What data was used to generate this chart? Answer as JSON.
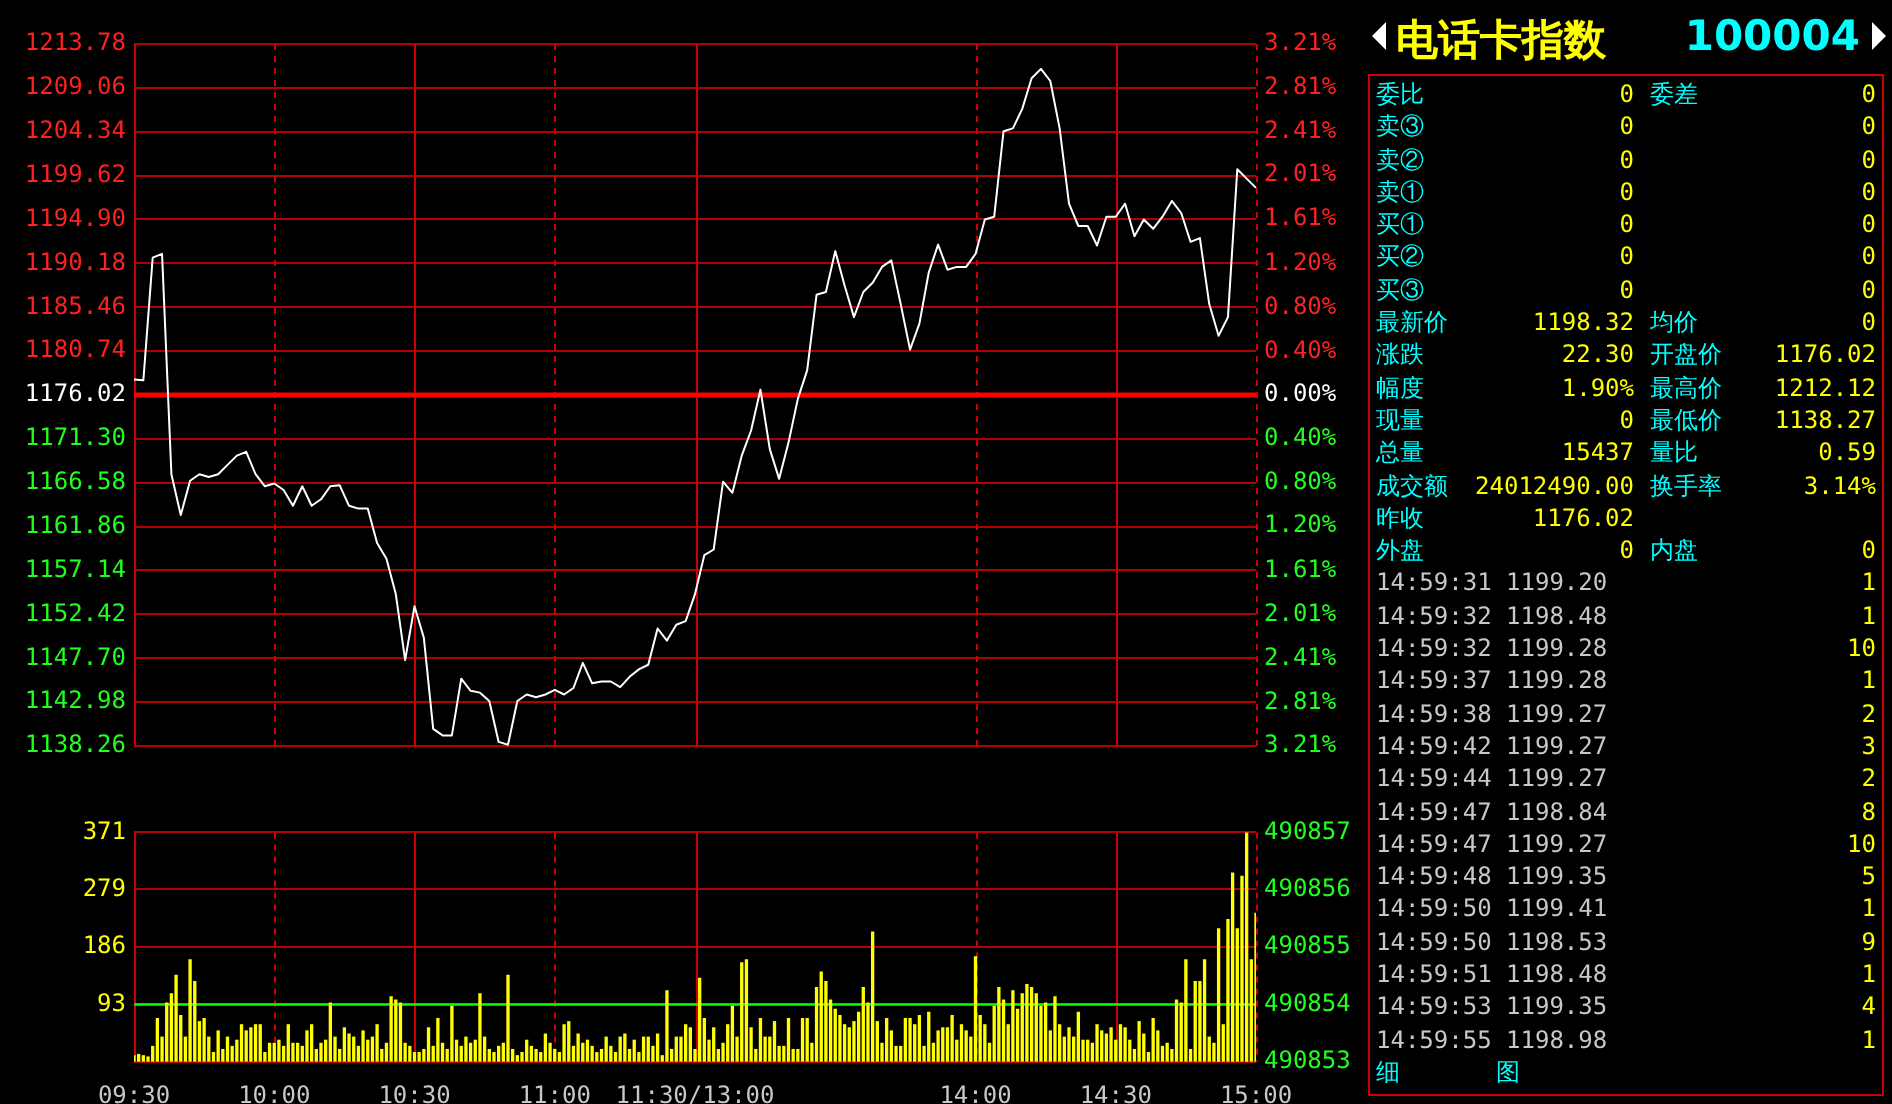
{
  "chart_data": [
    {
      "type": "line",
      "color": "#ffffff",
      "marker": "none",
      "grid": true,
      "tick_labels": "y",
      "categories": [
        null,
        null,
        null,
        null,
        null,
        null,
        null,
        null,
        null,
        null,
        null,
        null,
        null,
        null,
        null,
        null,
        null,
        null,
        null,
        null,
        null,
        null,
        null,
        null,
        null,
        null,
        null,
        null,
        null,
        null,
        null,
        null,
        null,
        null,
        null,
        null,
        null,
        null,
        null,
        null,
        null,
        null,
        null,
        null,
        null,
        null,
        null,
        null,
        null,
        null,
        null,
        null,
        null,
        null,
        null,
        null,
        null,
        null,
        null,
        null,
        null,
        null,
        null,
        null,
        null,
        null,
        null,
        null,
        null,
        null,
        null,
        null,
        null,
        null,
        null,
        null,
        null,
        null,
        null,
        null,
        null,
        null,
        null,
        null,
        null,
        null,
        null,
        null,
        null,
        null,
        null,
        null,
        null,
        null,
        null,
        null,
        null,
        null,
        null,
        null,
        null,
        null,
        null,
        null,
        null,
        null,
        null,
        null,
        null,
        null,
        null,
        null,
        null,
        null,
        null,
        null,
        null,
        null,
        null,
        null,
        null
      ],
      "values": [
        1177.7,
        1177.6,
        1190.8,
        1191.2,
        1167.5,
        1163.1,
        1166.8,
        1167.5,
        1167.2,
        1167.5,
        1168.5,
        1169.5,
        1169.9,
        1167.5,
        1166.2,
        1166.5,
        1165.8,
        1164.1,
        1166.2,
        1164.1,
        1164.8,
        1166.2,
        1166.3,
        1164.1,
        1163.8,
        1163.8,
        1160.1,
        1158.4,
        1154.6,
        1147.5,
        1153.3,
        1149.9,
        1140.1,
        1139.4,
        1139.4,
        1145.5,
        1144.2,
        1144.0,
        1143.1,
        1138.7,
        1138.4,
        1143.1,
        1143.8,
        1143.5,
        1143.8,
        1144.3,
        1143.8,
        1144.5,
        1147.2,
        1145.0,
        1145.2,
        1145.2,
        1144.6,
        1145.7,
        1146.5,
        1147.0,
        1150.9,
        1149.6,
        1151.3,
        1151.7,
        1154.6,
        1158.8,
        1159.4,
        1166.7,
        1165.5,
        1169.5,
        1172.2,
        1176.6,
        1170.2,
        1167.0,
        1170.9,
        1175.6,
        1178.7,
        1186.8,
        1187.1,
        1191.5,
        1187.8,
        1184.4,
        1187.1,
        1188.1,
        1189.8,
        1190.5,
        1185.8,
        1180.9,
        1183.7,
        1189.2,
        1192.2,
        1189.5,
        1189.8,
        1189.8,
        1191.2,
        1194.9,
        1195.2,
        1204.4,
        1204.7,
        1206.8,
        1210.1,
        1211.1,
        1209.8,
        1204.7,
        1196.6,
        1194.2,
        1194.2,
        1192.1,
        1195.2,
        1195.2,
        1196.6,
        1193.1,
        1194.9,
        1193.9,
        1195.2,
        1196.9,
        1195.6,
        1192.5,
        1192.9,
        1185.8,
        1182.4,
        1184.4,
        1200.3,
        1199.3,
        1198.3
      ],
      "ylim": [
        1138.26,
        1213.78
      ],
      "yticks": [
        1138.26,
        1142.98,
        {
          "value": 1147.7,
          "label": "1147.70"
        },
        1152.42,
        1157.14,
        1161.86,
        1166.58,
        {
          "value": 1171.3,
          "label": "1171.30"
        },
        1176.02,
        1180.74,
        1185.46,
        1190.18,
        {
          "value": 1194.9,
          "label": "1194.90"
        },
        1199.62,
        1204.34,
        1209.06,
        1213.78
      ],
      "y2lim": [
        -3.21,
        3.21
      ],
      "y2ticks": [
        {
          "value": -3.21,
          "label": "3.21%"
        },
        {
          "value": -2.81,
          "label": "2.81%"
        },
        {
          "value": -2.41,
          "label": "2.41%"
        },
        {
          "value": -2.01,
          "label": "2.01%"
        },
        {
          "value": -1.61,
          "label": "1.61%"
        },
        {
          "value": -1.2,
          "label": "1.20%"
        },
        {
          "value": -0.8,
          "label": "0.80%"
        },
        {
          "value": -0.4,
          "label": "0.40%"
        },
        {
          "value": 0,
          "label": "0.00%"
        },
        {
          "value": 0.4,
          "label": "0.40%"
        },
        {
          "value": 0.8,
          "label": "0.80%"
        },
        {
          "value": 1.2,
          "label": "1.20%"
        },
        {
          "value": 1.61,
          "label": "1.61%"
        },
        {
          "value": 2.01,
          "label": "2.01%"
        },
        {
          "value": 2.41,
          "label": "2.41%"
        },
        {
          "value": 2.81,
          "label": "2.81%"
        },
        {
          "value": 3.21,
          "label": "3.21%"
        }
      ],
      "ref_lines": [
        {
          "axis": "y",
          "value": 1176.02,
          "color": "#ff0000"
        }
      ]
    },
    {
      "type": "bar",
      "color": "#ffff00",
      "grid": true,
      "categories": [
        "09:30",
        null,
        null,
        null,
        null,
        null,
        null,
        null,
        null,
        null,
        null,
        null,
        null,
        null,
        null,
        null,
        null,
        null,
        null,
        null,
        null,
        null,
        null,
        null,
        null,
        null,
        null,
        null,
        null,
        null,
        "10:00",
        null,
        null,
        null,
        null,
        null,
        null,
        null,
        null,
        null,
        null,
        null,
        null,
        null,
        null,
        null,
        null,
        null,
        null,
        null,
        null,
        null,
        null,
        null,
        null,
        null,
        null,
        null,
        null,
        null,
        "10:30",
        null,
        null,
        null,
        null,
        null,
        null,
        null,
        null,
        null,
        null,
        null,
        null,
        null,
        null,
        null,
        null,
        null,
        null,
        null,
        null,
        null,
        null,
        null,
        null,
        null,
        null,
        null,
        null,
        null,
        "11:00",
        null,
        null,
        null,
        null,
        null,
        null,
        null,
        null,
        null,
        null,
        null,
        null,
        null,
        null,
        null,
        null,
        null,
        null,
        null,
        null,
        null,
        null,
        null,
        null,
        null,
        null,
        null,
        null,
        null,
        "11:30/13:00",
        null,
        null,
        null,
        null,
        null,
        null,
        null,
        null,
        null,
        null,
        null,
        null,
        null,
        null,
        null,
        null,
        null,
        null,
        null,
        null,
        null,
        null,
        null,
        null,
        null,
        null,
        null,
        null,
        null,
        null,
        null,
        null,
        null,
        null,
        null,
        null,
        null,
        null,
        null,
        null,
        null,
        null,
        null,
        null,
        null,
        null,
        null,
        null,
        null,
        null,
        null,
        null,
        null,
        null,
        null,
        null,
        null,
        null,
        null,
        "14:00",
        null,
        null,
        null,
        null,
        null,
        null,
        null,
        null,
        null,
        null,
        null,
        null,
        null,
        null,
        null,
        null,
        null,
        null,
        null,
        null,
        null,
        null,
        null,
        null,
        null,
        null,
        null,
        null,
        null,
        "14:30",
        null,
        null,
        null,
        null,
        null,
        null,
        null,
        null,
        null,
        null,
        null,
        null,
        null,
        null,
        null,
        null,
        null,
        null,
        null,
        null,
        null,
        null,
        null,
        null,
        null,
        null,
        null,
        null,
        null,
        "15:00"
      ],
      "values": [
        10,
        12,
        10,
        8,
        25,
        70,
        40,
        95,
        110,
        140,
        75,
        40,
        165,
        130,
        65,
        70,
        40,
        15,
        50,
        20,
        40,
        25,
        35,
        60,
        50,
        55,
        60,
        60,
        15,
        30,
        30,
        35,
        25,
        60,
        30,
        30,
        25,
        50,
        60,
        20,
        30,
        35,
        95,
        40,
        20,
        55,
        45,
        40,
        25,
        50,
        35,
        40,
        60,
        20,
        30,
        105,
        100,
        95,
        30,
        25,
        15,
        15,
        20,
        55,
        25,
        70,
        30,
        20,
        90,
        35,
        25,
        40,
        30,
        35,
        110,
        40,
        20,
        15,
        25,
        30,
        140,
        20,
        10,
        15,
        35,
        25,
        20,
        15,
        45,
        30,
        20,
        15,
        60,
        65,
        25,
        45,
        30,
        35,
        25,
        15,
        20,
        40,
        25,
        15,
        40,
        45,
        20,
        35,
        15,
        40,
        40,
        25,
        45,
        10,
        115,
        20,
        40,
        40,
        60,
        55,
        20,
        135,
        70,
        35,
        55,
        20,
        30,
        60,
        90,
        40,
        160,
        165,
        55,
        20,
        70,
        40,
        40,
        65,
        25,
        25,
        70,
        20,
        20,
        70,
        70,
        30,
        120,
        145,
        130,
        100,
        85,
        75,
        60,
        55,
        65,
        80,
        120,
        95,
        210,
        65,
        30,
        70,
        50,
        25,
        25,
        70,
        70,
        60,
        75,
        25,
        80,
        30,
        50,
        55,
        55,
        75,
        35,
        60,
        50,
        40,
        170,
        75,
        60,
        30,
        90,
        120,
        100,
        60,
        115,
        85,
        110,
        125,
        120,
        110,
        90,
        95,
        50,
        105,
        60,
        40,
        55,
        40,
        80,
        35,
        35,
        30,
        60,
        50,
        45,
        55,
        35,
        60,
        55,
        35,
        20,
        65,
        45,
        15,
        70,
        50,
        25,
        30,
        20,
        100,
        95,
        165,
        20,
        130,
        130,
        165,
        40,
        30,
        215,
        60,
        230,
        305,
        215,
        300,
        371,
        165,
        240
      ],
      "ylim": [
        0,
        371
      ],
      "yticks": [
        {
          "value": 0,
          "label": null
        },
        93,
        186,
        279,
        371
      ],
      "y2lim": [
        490853,
        490857
      ],
      "y2ticks": [
        490853,
        490854,
        490855,
        490856,
        490857
      ],
      "ref_lines": [
        {
          "axis": "y",
          "value": 93,
          "color": "#00ff00"
        }
      ]
    },
    {
      "type": "other",
      "title": "电话卡指数",
      "subtitle": "100004",
      "annotations": [
        "委比 0 委差 0",
        "卖③ 0 0",
        "卖② 0 0",
        "卖① 0 0",
        "买① 0 0",
        "买② 0 0",
        "买③ 0 0",
        "最新价 1198.32 均价 0",
        "涨跌 22.30 开盘价 1176.02",
        "幅度 1.90% 最高价 1212.12",
        "现量 0 最低价 1138.27",
        "总量 15437 量比 0.59",
        "成交额 24012490.00 换手率 3.14%",
        "昨收 1176.02",
        "外盘 0 内盘 0",
        "14:59:31 1199.20 1",
        "14:59:32 1198.48 1",
        "14:59:32 1199.28 10",
        "14:59:37 1199.28 1",
        "14:59:38 1199.27 2",
        "14:59:42 1199.27 3",
        "14:59:44 1199.27 2",
        "14:59:47 1198.84 8",
        "14:59:47 1199.27 10",
        "14:59:48 1199.35 5",
        "14:59:50 1199.41 1",
        "14:59:50 1198.53 9",
        "14:59:51 1198.48 1",
        "14:59:53 1199.35 4",
        "14:59:55 1198.98 1",
        "细 图"
      ]
    }
  ]
}
